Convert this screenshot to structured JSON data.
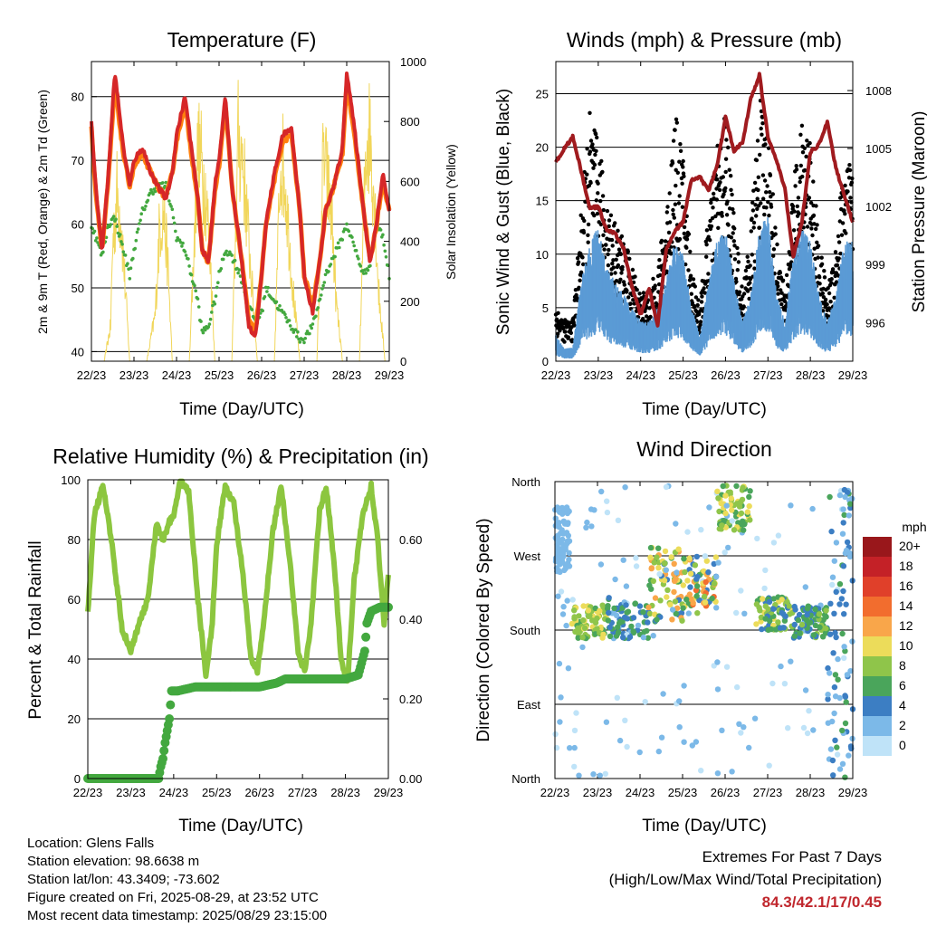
{
  "chart_data": [
    {
      "type": "line",
      "title": "Temperature (F)",
      "xlabel": "Time (Day/UTC)",
      "ylabel": "2m & 9m T (Red, Orange) & 2m Td (Green)",
      "y2label": "Solar Insolation (Yellow)",
      "x_ticks": [
        "22/23",
        "23/23",
        "24/23",
        "25/23",
        "26/23",
        "27/23",
        "28/23",
        "29/23"
      ],
      "ylim": [
        38.5,
        85.5
      ],
      "y_ticks": [
        40,
        50,
        60,
        70,
        80
      ],
      "y2lim": [
        0,
        1000
      ],
      "y2_ticks": [
        0,
        200,
        400,
        600,
        800,
        1000
      ],
      "grid": true,
      "x_days": [
        0,
        0.1,
        0.25,
        0.4,
        0.55,
        0.75,
        0.9,
        1.0,
        1.2,
        1.4,
        1.55,
        1.75,
        1.9,
        2.0,
        2.2,
        2.35,
        2.5,
        2.6,
        2.75,
        2.9,
        3.0,
        3.15,
        3.3,
        3.5,
        3.7,
        3.85,
        4.0,
        4.1,
        4.3,
        4.5,
        4.7,
        4.9,
        5.0,
        5.2,
        5.4,
        5.5,
        5.7,
        5.9,
        6.0,
        6.2,
        6.4,
        6.55,
        6.7,
        6.85,
        7.0
      ],
      "series": [
        {
          "name": "2m T",
          "color": "#d62728",
          "values": [
            76,
            66,
            56,
            68,
            84,
            72,
            66,
            70,
            72,
            68,
            66,
            64,
            68,
            74,
            80,
            72,
            64,
            56,
            54,
            66,
            70,
            80,
            66,
            56,
            44,
            42,
            52,
            60,
            68,
            74,
            75,
            62,
            52,
            46,
            56,
            62,
            66,
            72,
            84,
            74,
            62,
            54,
            60,
            68,
            62
          ]
        },
        {
          "name": "9m T",
          "color": "#ff7f0e",
          "values": [
            75,
            65,
            56,
            67,
            82,
            71,
            66,
            69,
            71,
            68,
            66,
            64,
            68,
            73,
            79,
            71,
            64,
            56,
            54,
            65,
            69,
            79,
            66,
            56,
            45,
            43,
            52,
            60,
            67,
            73,
            74,
            62,
            52,
            47,
            56,
            62,
            66,
            71,
            82,
            73,
            62,
            54,
            60,
            67,
            62
          ]
        },
        {
          "name": "2m Td",
          "color": "#43a83f",
          "values": [
            60,
            58,
            55,
            60,
            61,
            56,
            52,
            56,
            62,
            65,
            66,
            66,
            62,
            58,
            56,
            52,
            48,
            43,
            44,
            48,
            52,
            56,
            55,
            52,
            47,
            45,
            46,
            50,
            48,
            46,
            44,
            42,
            42,
            44,
            49,
            52,
            55,
            58,
            60,
            56,
            52,
            54,
            60,
            58,
            52
          ]
        }
      ],
      "insolation": {
        "name": "Solar Insolation",
        "color": "#f1d65a",
        "x_days": [
          0,
          0.3,
          0.45,
          0.5,
          0.6,
          0.7,
          0.8,
          0.9,
          1.3,
          1.5,
          1.6,
          1.7,
          1.8,
          1.9,
          2.3,
          2.5,
          2.6,
          2.7,
          2.8,
          2.9,
          3.3,
          3.45,
          3.55,
          3.65,
          3.75,
          3.9,
          4.3,
          4.45,
          4.55,
          4.65,
          4.75,
          4.9,
          5.3,
          5.45,
          5.55,
          5.65,
          5.75,
          5.9,
          6.3,
          6.45,
          6.55,
          6.65,
          6.75,
          6.9,
          7.0
        ],
        "values": [
          0,
          0,
          150,
          500,
          720,
          600,
          300,
          0,
          0,
          200,
          580,
          640,
          400,
          0,
          0,
          900,
          840,
          700,
          420,
          0,
          0,
          950,
          880,
          640,
          380,
          0,
          0,
          900,
          780,
          520,
          280,
          0,
          0,
          880,
          760,
          620,
          260,
          0,
          0,
          920,
          980,
          700,
          300,
          0,
          0
        ]
      }
    },
    {
      "type": "scatter",
      "title": "Winds (mph) & Pressure (mb)",
      "xlabel": "Time (Day/UTC)",
      "ylabel": "Sonic Wind & Gust (Blue, Black)",
      "y2label": "Station Pressure (Maroon)",
      "x_ticks": [
        "22/23",
        "23/23",
        "24/23",
        "25/23",
        "26/23",
        "27/23",
        "28/23",
        "29/23"
      ],
      "ylim": [
        0,
        28
      ],
      "y_ticks": [
        0,
        5,
        10,
        15,
        20,
        25
      ],
      "y2lim": [
        994,
        1009.5
      ],
      "y2_ticks": [
        996,
        999,
        1002,
        1005,
        1008
      ],
      "grid": true,
      "pressure": {
        "name": "Station Pressure",
        "color": "#a01b1f",
        "x_days": [
          0,
          0.2,
          0.4,
          0.6,
          0.8,
          1.0,
          1.2,
          1.4,
          1.6,
          1.8,
          2.0,
          2.2,
          2.4,
          2.6,
          2.8,
          3.0,
          3.2,
          3.4,
          3.6,
          3.8,
          4.0,
          4.2,
          4.4,
          4.6,
          4.8,
          5.0,
          5.2,
          5.4,
          5.6,
          5.8,
          6.0,
          6.2,
          6.4,
          6.6,
          6.8,
          7.0
        ],
        "values": [
          1004.3,
          1005,
          1005.6,
          1003.8,
          1001.9,
          1002,
          1000.8,
          1000.6,
          999.8,
          997.8,
          996.4,
          997.8,
          995.8,
          999.8,
          1000.7,
          1001.2,
          1003.4,
          1003.5,
          1002.8,
          1004.1,
          1006.6,
          1004.9,
          1005.3,
          1007.6,
          1008.8,
          1005.6,
          1004.4,
          1002.9,
          999.4,
          1001.2,
          1004.8,
          1005.2,
          1006.4,
          1004.0,
          1002.6,
          1001.2
        ]
      },
      "wind": {
        "name": "Sonic Wind",
        "color": "#5b9bd5",
        "x_days": [
          0,
          0.2,
          0.4,
          0.6,
          0.8,
          1.0,
          1.2,
          1.4,
          1.6,
          1.8,
          2.0,
          2.2,
          2.4,
          2.6,
          2.8,
          3.0,
          3.2,
          3.4,
          3.6,
          3.8,
          4.0,
          4.2,
          4.4,
          4.6,
          4.8,
          5.0,
          5.2,
          5.4,
          5.6,
          5.8,
          6.0,
          6.2,
          6.4,
          6.6,
          6.8,
          7.0
        ],
        "values": [
          2,
          1,
          1,
          6,
          9,
          10,
          7,
          6,
          5,
          4,
          3,
          3,
          4,
          6,
          9,
          8,
          4,
          2,
          6,
          9,
          10,
          6,
          3,
          5,
          10,
          11,
          5,
          3,
          8,
          10,
          9,
          5,
          3,
          5,
          9,
          9
        ]
      },
      "gust": {
        "name": "Gust",
        "color": "#000000",
        "x_days": [
          0,
          0.2,
          0.4,
          0.6,
          0.8,
          1.0,
          1.2,
          1.4,
          1.6,
          1.8,
          2.0,
          2.2,
          2.4,
          2.6,
          2.8,
          3.0,
          3.2,
          3.4,
          3.6,
          3.8,
          4.0,
          4.2,
          4.4,
          4.6,
          4.8,
          5.0,
          5.2,
          5.4,
          5.6,
          5.8,
          6.0,
          6.2,
          6.4,
          6.6,
          6.8,
          7.0
        ],
        "values": [
          4,
          3,
          3,
          11,
          18,
          16,
          12,
          10,
          9,
          7,
          5,
          5,
          7,
          11,
          18,
          15,
          7,
          4,
          11,
          16,
          18,
          11,
          5,
          10,
          19,
          17,
          9,
          5,
          13,
          17,
          16,
          9,
          5,
          9,
          15,
          14
        ]
      }
    },
    {
      "type": "line",
      "title": "Relative Humidity (%) & Precipitation (in)",
      "xlabel": "Time (Day/UTC)",
      "ylabel": "Percent & Total Rainfall",
      "x_ticks": [
        "22/23",
        "23/23",
        "24/23",
        "25/23",
        "26/23",
        "27/23",
        "28/23",
        "29/23"
      ],
      "ylim": [
        0,
        100
      ],
      "y_ticks": [
        0,
        20,
        40,
        60,
        80,
        100
      ],
      "y2lim": [
        0,
        0.75
      ],
      "y2_ticks": [
        "0.00",
        "0.20",
        "0.40",
        "0.60"
      ],
      "grid": true,
      "humidity": {
        "name": "Relative Humidity",
        "color": "#8cc63f",
        "x_days": [
          0,
          0.15,
          0.35,
          0.55,
          0.8,
          1.0,
          1.2,
          1.4,
          1.6,
          1.75,
          1.9,
          2.0,
          2.15,
          2.35,
          2.55,
          2.75,
          2.9,
          3.0,
          3.2,
          3.4,
          3.6,
          3.8,
          3.95,
          4.1,
          4.3,
          4.5,
          4.7,
          4.9,
          5.05,
          5.2,
          5.4,
          5.55,
          5.75,
          5.9,
          6.05,
          6.2,
          6.4,
          6.6,
          6.75,
          6.9,
          7.0
        ],
        "values": [
          55,
          88,
          98,
          80,
          50,
          43,
          52,
          60,
          85,
          80,
          86,
          88,
          100,
          96,
          62,
          35,
          52,
          78,
          98,
          92,
          70,
          40,
          36,
          52,
          82,
          98,
          74,
          42,
          36,
          52,
          90,
          98,
          70,
          40,
          32,
          66,
          88,
          98,
          80,
          52,
          68
        ]
      },
      "rainfall": {
        "name": "Total Rainfall",
        "color": "#43a83f",
        "x_days": [
          0,
          1.65,
          1.7,
          1.75,
          1.8,
          1.9,
          1.95,
          2.1,
          2.5,
          3.0,
          3.5,
          4.0,
          4.4,
          4.6,
          5.0,
          5.5,
          6.0,
          6.3,
          6.45,
          6.5,
          6.6,
          6.8,
          7.0
        ],
        "values": [
          0,
          0,
          0.03,
          0.05,
          0.09,
          0.15,
          0.22,
          0.22,
          0.23,
          0.23,
          0.23,
          0.23,
          0.24,
          0.25,
          0.25,
          0.25,
          0.25,
          0.26,
          0.32,
          0.39,
          0.42,
          0.43,
          0.43
        ]
      }
    },
    {
      "type": "scatter",
      "title": "Wind Direction",
      "xlabel": "Time (Day/UTC)",
      "ylabel": "Direction (Colored By Speed)",
      "x_ticks": [
        "22/23",
        "23/23",
        "24/23",
        "25/23",
        "26/23",
        "27/23",
        "28/23",
        "29/23"
      ],
      "y_ticks": [
        "North",
        "East",
        "South",
        "West",
        "North"
      ],
      "ylim": [
        0,
        360
      ],
      "grid": true,
      "colorbar": {
        "title": "mph",
        "labels": [
          "20+",
          "18",
          "16",
          "14",
          "12",
          "10",
          "8",
          "6",
          "4",
          "2",
          "0"
        ],
        "colors": [
          "#99171b",
          "#c42127",
          "#e0402a",
          "#f26d2e",
          "#f9a64a",
          "#ecdc5a",
          "#8fc54a",
          "#4aa55b",
          "#3c7ec3",
          "#7cb9e8",
          "#bfe3f8"
        ]
      },
      "direction_clusters": [
        {
          "x_days": [
            0.0,
            0.35
          ],
          "dir": [
            250,
            330
          ],
          "speed": [
            1,
            3
          ]
        },
        {
          "x_days": [
            0.4,
            1.2
          ],
          "dir": [
            170,
            210
          ],
          "speed": [
            6,
            10
          ]
        },
        {
          "x_days": [
            1.2,
            2.2
          ],
          "dir": [
            170,
            220
          ],
          "speed": [
            2,
            7
          ]
        },
        {
          "x_days": [
            2.2,
            3.0
          ],
          "dir": [
            190,
            280
          ],
          "speed": [
            4,
            13
          ]
        },
        {
          "x_days": [
            3.0,
            3.8
          ],
          "dir": [
            200,
            270
          ],
          "speed": [
            3,
            14
          ]
        },
        {
          "x_days": [
            3.8,
            4.6
          ],
          "dir": [
            300,
            355
          ],
          "speed": [
            5,
            11
          ]
        },
        {
          "x_days": [
            4.7,
            5.6
          ],
          "dir": [
            180,
            220
          ],
          "speed": [
            3,
            10
          ]
        },
        {
          "x_days": [
            5.6,
            6.4
          ],
          "dir": [
            170,
            210
          ],
          "speed": [
            3,
            8
          ]
        },
        {
          "x_days": [
            6.4,
            7.0
          ],
          "dir": [
            0,
            360
          ],
          "speed": [
            1,
            6
          ]
        }
      ]
    }
  ],
  "info": {
    "location": "Location: Glens Falls",
    "elevation": "Station elevation: 98.6638 m",
    "latlon": "Station lat/lon: 43.3409; -73.602",
    "created": "Figure created on Fri, 2025-08-29, at 23:52 UTC",
    "recent": "Most recent data timestamp: 2025/08/29 23:15:00"
  },
  "extremes": {
    "title": "Extremes For Past 7 Days",
    "subtitle": "(High/Low/Max Wind/Total Precipitation)",
    "values": "84.3/42.1/17/0.45"
  }
}
